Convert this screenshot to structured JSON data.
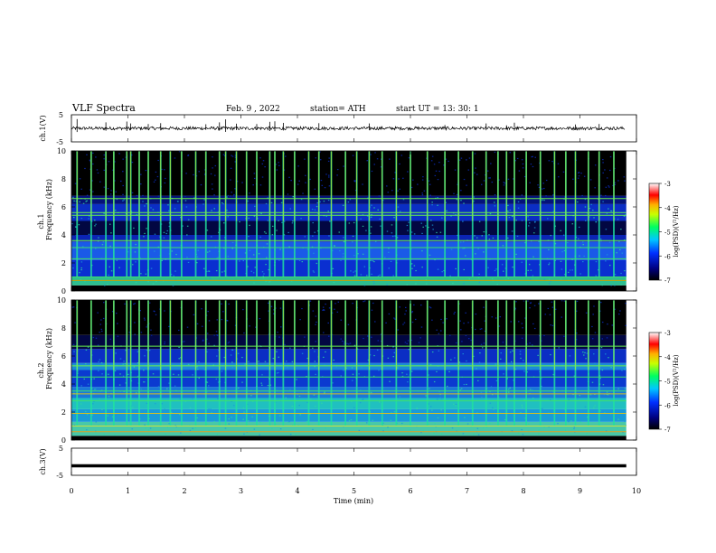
{
  "header": {
    "title": "VLF Spectra",
    "date": "Feb. 9 , 2022",
    "station": "station= ATH",
    "start": "start UT =   13: 30: 1"
  },
  "chart_data": [
    {
      "type": "line",
      "title": "",
      "ylabel": "ch.1(V)",
      "ylim": [
        -5,
        5
      ],
      "yticks": [
        "5",
        "-5"
      ],
      "xlim": [
        0,
        10
      ],
      "baseline": 0,
      "spike_times": [
        0.1,
        0.61,
        0.98,
        1.05,
        1.36,
        1.58,
        2.38,
        2.62,
        2.73,
        2.92,
        3.28,
        3.51,
        3.6,
        3.75,
        4.38,
        5.27,
        6.61,
        7.34,
        7.7,
        7.84,
        8.92,
        9.34
      ],
      "spike_amplitudes": [
        3.4,
        2.2,
        2.5,
        1.8,
        1.6,
        1.9,
        1.5,
        2.2,
        3.3,
        1.7,
        1.6,
        2.4,
        2.6,
        2.0,
        1.9,
        1.8,
        1.2,
        1.8,
        1.1,
        2.1,
        1.4,
        1.6
      ]
    },
    {
      "type": "heatmap",
      "title": "",
      "ylabel": "ch.1",
      "ylabel2": "Frequency  (kHz)",
      "ylim": [
        0,
        10
      ],
      "yticks": [
        "10",
        "8",
        "6",
        "4",
        "2",
        "0"
      ],
      "xlim": [
        0,
        10
      ],
      "colorbar": {
        "label": "log(PSD)(V²/Hz)",
        "range": [
          -7,
          -3
        ],
        "ticks": [
          "-3",
          "-4",
          "-5",
          "-6",
          "-7"
        ]
      },
      "bands": [
        {
          "from": 0,
          "to": 0.4,
          "color": "#000000"
        },
        {
          "from": 0.4,
          "to": 1.0,
          "color": "#2dbf8f"
        },
        {
          "from": 1.0,
          "to": 2.2,
          "color": "#0a2fd0"
        },
        {
          "from": 2.2,
          "to": 3.5,
          "color": "#1a5ae8"
        },
        {
          "from": 3.5,
          "to": 4.0,
          "color": "#0b24b5"
        },
        {
          "from": 4.0,
          "to": 5.0,
          "color": "#020742"
        },
        {
          "from": 5.0,
          "to": 6.2,
          "color": "#0b2ec4"
        },
        {
          "from": 6.2,
          "to": 6.8,
          "color": "#04127a"
        },
        {
          "from": 6.8,
          "to": 10.0,
          "color": "#000000"
        }
      ],
      "lines": [
        {
          "freq": 0.75,
          "color": "#c8a000"
        },
        {
          "freq": 1.0,
          "color": "#3fe06a"
        },
        {
          "freq": 2.3,
          "color": "#3fe06a"
        },
        {
          "freq": 3.1,
          "color": "#3fe06a"
        },
        {
          "freq": 3.6,
          "color": "#6af04a"
        },
        {
          "freq": 5.4,
          "color": "#6af04a"
        },
        {
          "freq": 5.6,
          "color": "#6af04a"
        },
        {
          "freq": 6.6,
          "color": "#6af04a"
        }
      ],
      "sferic_times": [
        0.1,
        0.35,
        0.61,
        0.75,
        0.98,
        1.05,
        1.2,
        1.36,
        1.58,
        1.75,
        1.95,
        2.2,
        2.38,
        2.62,
        2.73,
        2.92,
        3.1,
        3.28,
        3.51,
        3.6,
        3.75,
        3.95,
        4.2,
        4.38,
        4.6,
        4.85,
        5.05,
        5.27,
        5.5,
        5.75,
        6.0,
        6.3,
        6.61,
        6.85,
        7.1,
        7.34,
        7.55,
        7.7,
        7.84,
        8.05,
        8.3,
        8.55,
        8.75,
        8.92,
        9.15,
        9.34,
        9.6
      ]
    },
    {
      "type": "heatmap",
      "title": "",
      "ylabel": "ch.2",
      "ylabel2": "Frequency  (kHz)",
      "ylim": [
        0,
        10
      ],
      "yticks": [
        "10",
        "8",
        "6",
        "4",
        "2",
        "0"
      ],
      "xlim": [
        0,
        10
      ],
      "colorbar": {
        "label": "log(PSD)(V²/Hz)",
        "range": [
          -7,
          -3
        ],
        "ticks": [
          "-3",
          "-4",
          "-5",
          "-6",
          "-7"
        ]
      },
      "bands": [
        {
          "from": 0,
          "to": 0.3,
          "color": "#000000"
        },
        {
          "from": 0.3,
          "to": 1.3,
          "color": "#48c8a8"
        },
        {
          "from": 1.3,
          "to": 2.2,
          "color": "#1a9ad8"
        },
        {
          "from": 2.2,
          "to": 3.0,
          "color": "#20c0c0"
        },
        {
          "from": 3.0,
          "to": 3.8,
          "color": "#1a78d8"
        },
        {
          "from": 3.8,
          "to": 5.0,
          "color": "#0b3ad0"
        },
        {
          "from": 5.0,
          "to": 5.5,
          "color": "#1a8ad8"
        },
        {
          "from": 5.5,
          "to": 6.5,
          "color": "#0b2ec4"
        },
        {
          "from": 6.5,
          "to": 7.5,
          "color": "#020742"
        },
        {
          "from": 7.5,
          "to": 10.0,
          "color": "#000000"
        }
      ],
      "lines": [
        {
          "freq": 0.6,
          "color": "#e0a020"
        },
        {
          "freq": 1.0,
          "color": "#c8e040"
        },
        {
          "freq": 1.9,
          "color": "#d8c020"
        },
        {
          "freq": 2.8,
          "color": "#3fe06a"
        },
        {
          "freq": 3.3,
          "color": "#d8c020"
        },
        {
          "freq": 3.5,
          "color": "#3fe06a"
        },
        {
          "freq": 4.5,
          "color": "#3fe06a"
        },
        {
          "freq": 5.3,
          "color": "#6af04a"
        },
        {
          "freq": 6.7,
          "color": "#6af04a"
        }
      ],
      "sferic_times": [
        0.1,
        0.35,
        0.61,
        0.75,
        0.98,
        1.05,
        1.2,
        1.36,
        1.58,
        1.75,
        1.95,
        2.2,
        2.38,
        2.62,
        2.73,
        2.92,
        3.1,
        3.28,
        3.51,
        3.6,
        3.75,
        3.95,
        4.2,
        4.38,
        4.6,
        4.85,
        5.05,
        5.27,
        5.5,
        5.75,
        6.0,
        6.3,
        6.61,
        6.85,
        7.1,
        7.34,
        7.55,
        7.7,
        7.84,
        8.05,
        8.3,
        8.55,
        8.75,
        8.92,
        9.15,
        9.34,
        9.6
      ]
    },
    {
      "type": "line",
      "title": "",
      "ylabel": "ch.3(V)",
      "xlabel": "Time  (min)",
      "ylim": [
        -5,
        5
      ],
      "yticks": [
        "5",
        "-5"
      ],
      "xlim": [
        0,
        10
      ],
      "xticks": [
        "0",
        "1",
        "2",
        "3",
        "4",
        "5",
        "6",
        "7",
        "8",
        "9",
        "10"
      ],
      "baseline": -1.5
    }
  ]
}
